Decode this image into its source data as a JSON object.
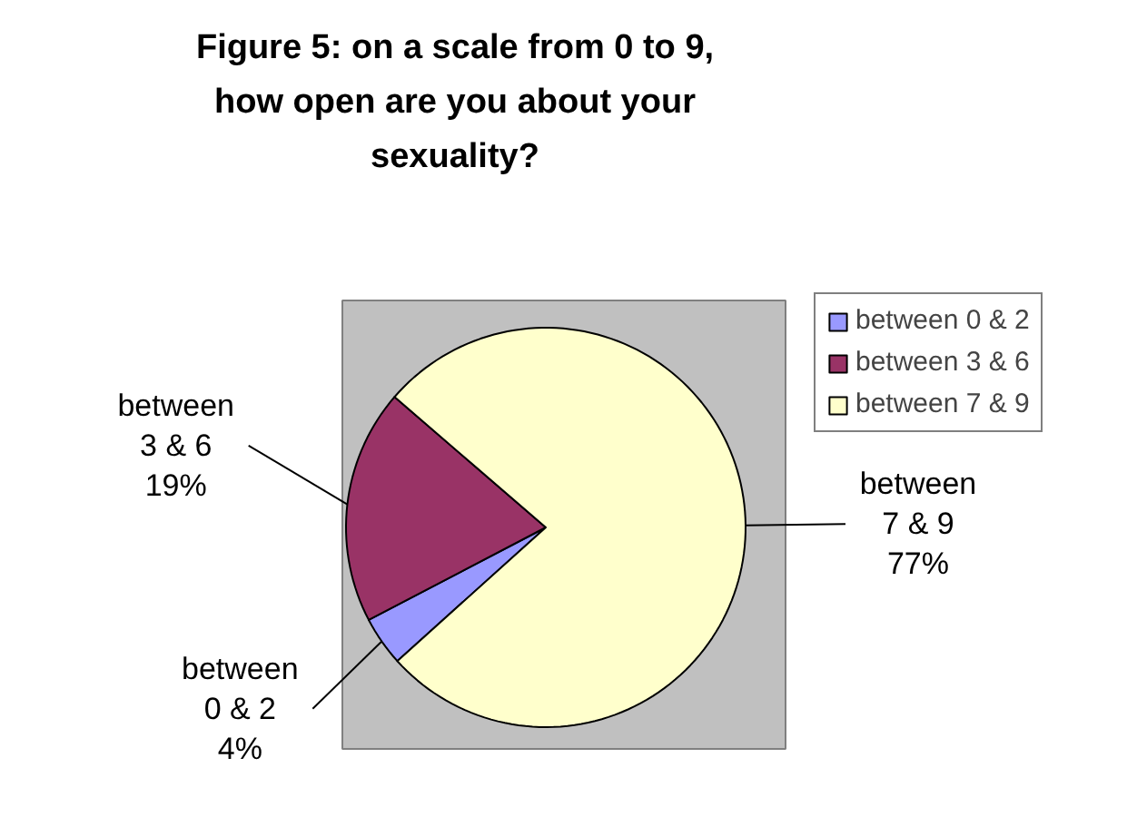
{
  "chart_data": {
    "type": "pie",
    "title": "Figure 5: on a scale from 0 to 9, how open are you about your sexuality?",
    "categories": [
      "between 0 & 2",
      "between 3 & 6",
      "between 7 & 9"
    ],
    "values": [
      4,
      19,
      77
    ],
    "colors": [
      "#9999ff",
      "#993366",
      "#ffffcc"
    ],
    "value_labels": [
      "4%",
      "19%",
      "77%"
    ],
    "legend": "top right"
  }
}
